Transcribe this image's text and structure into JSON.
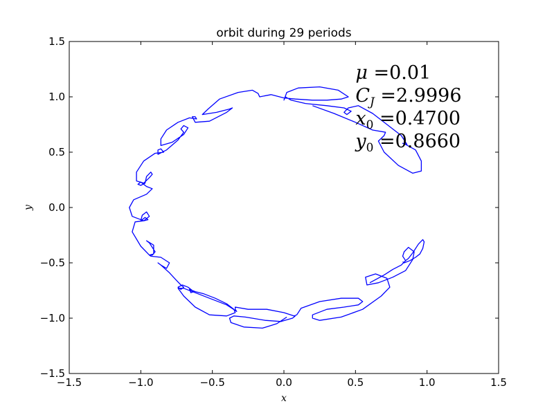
{
  "chart_data": {
    "type": "line",
    "title": "orbit during 29 periods",
    "xlabel": "x",
    "ylabel": "y",
    "xlim": [
      -1.5,
      1.5
    ],
    "ylim": [
      -1.5,
      1.5
    ],
    "xticks": [
      -1.5,
      -1.0,
      -0.5,
      0.0,
      0.5,
      1.0,
      1.5
    ],
    "xticklabels": [
      "−1.5",
      "−1.0",
      "−0.5",
      "0.0",
      "0.5",
      "1.0",
      "1.5"
    ],
    "yticks": [
      -1.5,
      -1.0,
      -0.5,
      0.0,
      0.5,
      1.0,
      1.5
    ],
    "yticklabels": [
      "−1.5",
      "−1.0",
      "−0.5",
      "0.0",
      "0.5",
      "1.0",
      "1.5"
    ],
    "grid": false,
    "line_color": "#0000ff",
    "annotations": [
      {
        "text": "μ =0.01"
      },
      {
        "text": "Cⱼ =2.9996"
      },
      {
        "text": "x₀ =0.4700"
      },
      {
        "text": "y₀ =0.8660"
      }
    ],
    "annotation_anchor": {
      "x": 0.5,
      "y": 1.22
    },
    "series": [
      {
        "points": [
          [
            0.2,
            0.92
          ],
          [
            0.35,
            0.85
          ],
          [
            0.5,
            0.77
          ],
          [
            0.62,
            0.7
          ],
          [
            0.71,
            0.68
          ],
          [
            0.7,
            0.65
          ],
          [
            0.66,
            0.6
          ],
          [
            0.7,
            0.5
          ],
          [
            0.8,
            0.38
          ],
          [
            0.9,
            0.31
          ],
          [
            0.96,
            0.33
          ],
          [
            0.96,
            0.42
          ],
          [
            0.92,
            0.52
          ],
          [
            0.85,
            0.57
          ],
          [
            0.83,
            0.58
          ],
          [
            0.86,
            0.57
          ],
          [
            0.82,
            0.65
          ],
          [
            0.72,
            0.75
          ],
          [
            0.62,
            0.85
          ],
          [
            0.52,
            0.92
          ],
          [
            0.45,
            0.9
          ],
          [
            0.42,
            0.86
          ],
          [
            0.44,
            0.84
          ],
          [
            0.47,
            0.87
          ],
          [
            0.42,
            0.9
          ],
          [
            0.3,
            0.92
          ],
          [
            0.15,
            0.94
          ],
          [
            0.05,
            0.97
          ],
          [
            0.01,
            1.0
          ],
          [
            0.0,
            0.97
          ],
          [
            0.02,
            1.04
          ],
          [
            0.1,
            1.08
          ],
          [
            0.25,
            1.09
          ],
          [
            0.38,
            1.06
          ],
          [
            0.45,
            1.0
          ],
          [
            0.4,
            0.98
          ],
          [
            0.3,
            0.97
          ],
          [
            0.2,
            0.97
          ],
          [
            0.08,
            0.98
          ],
          [
            0.0,
            0.99
          ],
          [
            -0.09,
            1.02
          ],
          [
            -0.17,
            1.0
          ],
          [
            -0.18,
            1.03
          ],
          [
            -0.22,
            1.06
          ],
          [
            -0.32,
            1.04
          ],
          [
            -0.45,
            0.98
          ],
          [
            -0.53,
            0.89
          ],
          [
            -0.57,
            0.84
          ],
          [
            -0.47,
            0.86
          ],
          [
            -0.38,
            0.89
          ],
          [
            -0.36,
            0.9
          ],
          [
            -0.4,
            0.86
          ],
          [
            -0.52,
            0.78
          ],
          [
            -0.62,
            0.77
          ],
          [
            -0.64,
            0.82
          ],
          [
            -0.62,
            0.82
          ],
          [
            -0.61,
            0.8
          ],
          [
            -0.66,
            0.81
          ],
          [
            -0.74,
            0.77
          ],
          [
            -0.82,
            0.7
          ],
          [
            -0.86,
            0.62
          ],
          [
            -0.86,
            0.56
          ],
          [
            -0.78,
            0.59
          ],
          [
            -0.7,
            0.66
          ],
          [
            -0.67,
            0.72
          ],
          [
            -0.7,
            0.74
          ],
          [
            -0.72,
            0.71
          ],
          [
            -0.7,
            0.68
          ],
          [
            -0.74,
            0.61
          ],
          [
            -0.82,
            0.52
          ],
          [
            -0.88,
            0.48
          ],
          [
            -0.88,
            0.52
          ],
          [
            -0.86,
            0.53
          ],
          [
            -0.84,
            0.5
          ],
          [
            -0.9,
            0.49
          ],
          [
            -0.98,
            0.42
          ],
          [
            -1.03,
            0.32
          ],
          [
            -1.03,
            0.24
          ],
          [
            -0.98,
            0.22
          ],
          [
            -0.94,
            0.27
          ],
          [
            -0.92,
            0.3
          ],
          [
            -0.93,
            0.32
          ],
          [
            -0.96,
            0.28
          ],
          [
            -0.97,
            0.22
          ],
          [
            -1.0,
            0.2
          ],
          [
            -1.02,
            0.21
          ],
          [
            -1.0,
            0.23
          ],
          [
            -0.96,
            0.19
          ],
          [
            -0.92,
            0.17
          ],
          [
            -0.96,
            0.12
          ],
          [
            -1.05,
            0.07
          ],
          [
            -1.08,
            0.0
          ],
          [
            -1.06,
            -0.08
          ],
          [
            -0.98,
            -0.12
          ],
          [
            -0.94,
            -0.08
          ],
          [
            -0.96,
            -0.04
          ],
          [
            -0.99,
            -0.07
          ],
          [
            -1.0,
            -0.12
          ],
          [
            -0.97,
            -0.09
          ],
          [
            -0.95,
            -0.11
          ],
          [
            -0.98,
            -0.12
          ],
          [
            -1.04,
            -0.13
          ],
          [
            -1.06,
            -0.22
          ],
          [
            -1.0,
            -0.35
          ],
          [
            -0.94,
            -0.43
          ],
          [
            -0.91,
            -0.42
          ],
          [
            -0.91,
            -0.34
          ],
          [
            -0.96,
            -0.3
          ],
          [
            -0.94,
            -0.32
          ],
          [
            -0.92,
            -0.36
          ],
          [
            -0.9,
            -0.4
          ],
          [
            -0.92,
            -0.43
          ],
          [
            -0.94,
            -0.43
          ],
          [
            -0.93,
            -0.44
          ],
          [
            -0.86,
            -0.45
          ],
          [
            -0.8,
            -0.5
          ],
          [
            -0.82,
            -0.55
          ],
          [
            -0.86,
            -0.52
          ],
          [
            -0.88,
            -0.5
          ],
          [
            -0.86,
            -0.52
          ],
          [
            -0.8,
            -0.59
          ],
          [
            -0.75,
            -0.66
          ],
          [
            -0.72,
            -0.7
          ],
          [
            -0.7,
            -0.72
          ],
          [
            -0.72,
            -0.74
          ],
          [
            -0.74,
            -0.72
          ],
          [
            -0.71,
            -0.7
          ],
          [
            -0.67,
            -0.72
          ],
          [
            -0.63,
            -0.76
          ],
          [
            -0.65,
            -0.77
          ],
          [
            -0.66,
            -0.74
          ],
          [
            -0.62,
            -0.76
          ],
          [
            -0.56,
            -0.78
          ],
          [
            -0.48,
            -0.82
          ],
          [
            -0.4,
            -0.87
          ],
          [
            -0.35,
            -0.92
          ],
          [
            -0.34,
            -0.95
          ],
          [
            -0.4,
            -0.98
          ],
          [
            -0.52,
            -0.97
          ],
          [
            -0.62,
            -0.9
          ],
          [
            -0.7,
            -0.8
          ],
          [
            -0.74,
            -0.73
          ],
          [
            -0.7,
            -0.73
          ],
          [
            -0.62,
            -0.77
          ],
          [
            -0.5,
            -0.83
          ],
          [
            -0.4,
            -0.88
          ],
          [
            -0.34,
            -0.93
          ],
          [
            -0.33,
            -0.94
          ],
          [
            -0.34,
            -0.92
          ],
          [
            -0.34,
            -0.9
          ],
          [
            -0.25,
            -0.92
          ],
          [
            -0.12,
            -0.92
          ],
          [
            0.0,
            -0.95
          ],
          [
            0.07,
            -0.98
          ],
          [
            0.09,
            -0.97
          ],
          [
            0.12,
            -0.91
          ],
          [
            0.25,
            -0.85
          ],
          [
            0.4,
            -0.82
          ],
          [
            0.52,
            -0.82
          ],
          [
            0.55,
            -0.85
          ],
          [
            0.52,
            -0.88
          ],
          [
            0.42,
            -0.9
          ],
          [
            0.3,
            -0.92
          ],
          [
            0.2,
            -0.97
          ],
          [
            0.2,
            -1.0
          ],
          [
            0.25,
            -1.02
          ],
          [
            0.4,
            -0.99
          ],
          [
            0.55,
            -0.92
          ],
          [
            0.68,
            -0.8
          ],
          [
            0.74,
            -0.72
          ],
          [
            0.72,
            -0.64
          ],
          [
            0.64,
            -0.6
          ],
          [
            0.57,
            -0.63
          ],
          [
            0.58,
            -0.7
          ],
          [
            0.66,
            -0.68
          ],
          [
            0.76,
            -0.63
          ],
          [
            0.85,
            -0.57
          ],
          [
            0.9,
            -0.47
          ],
          [
            0.91,
            -0.4
          ],
          [
            0.87,
            -0.36
          ],
          [
            0.84,
            -0.4
          ],
          [
            0.83,
            -0.44
          ],
          [
            0.85,
            -0.48
          ]
        ]
      },
      {
        "points": [
          [
            0.6,
            -0.68
          ],
          [
            0.7,
            -0.61
          ],
          [
            0.76,
            -0.56
          ],
          [
            0.82,
            -0.52
          ],
          [
            0.85,
            -0.48
          ],
          [
            0.87,
            -0.46
          ],
          [
            0.9,
            -0.41
          ],
          [
            0.94,
            -0.33
          ],
          [
            0.97,
            -0.29
          ],
          [
            0.98,
            -0.31
          ],
          [
            0.97,
            -0.37
          ],
          [
            0.95,
            -0.42
          ],
          [
            0.92,
            -0.45
          ],
          [
            0.88,
            -0.48
          ],
          [
            0.84,
            -0.5
          ],
          [
            0.83,
            -0.49
          ]
        ]
      },
      {
        "points": [
          [
            0.02,
            -0.99
          ],
          [
            -0.05,
            -1.05
          ],
          [
            -0.15,
            -1.09
          ],
          [
            -0.28,
            -1.08
          ],
          [
            -0.37,
            -1.04
          ],
          [
            -0.38,
            -1.0
          ],
          [
            -0.35,
            -0.98
          ],
          [
            -0.27,
            -0.99
          ],
          [
            -0.13,
            -1.02
          ],
          [
            -0.02,
            -1.03
          ],
          [
            0.06,
            -1.0
          ],
          [
            0.08,
            -0.98
          ]
        ]
      }
    ]
  }
}
